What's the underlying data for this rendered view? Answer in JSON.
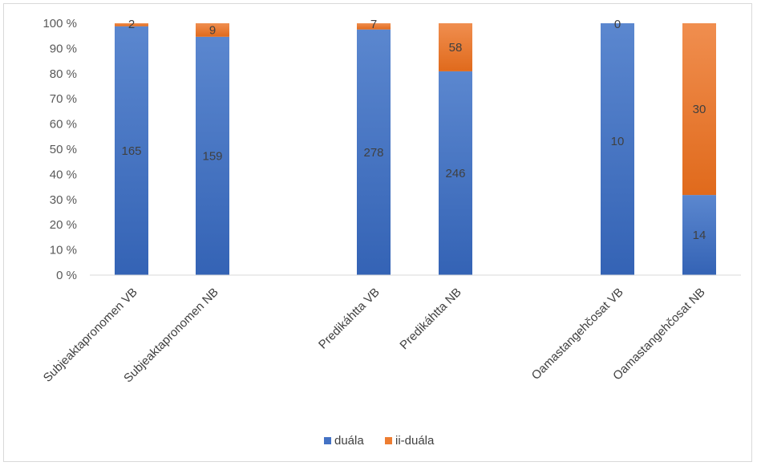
{
  "chart_data": {
    "type": "bar",
    "stacked": "percent",
    "categories": [
      "Subjeaktapronomen VB",
      "Subjeaktapronomen NB",
      "Predikáhtta VB",
      "Predikáhtta NB",
      "Oamastangehčosat VB",
      "Oamastangehčosat NB"
    ],
    "groups": [
      [
        0,
        1
      ],
      [
        2,
        3
      ],
      [
        4,
        5
      ]
    ],
    "series": [
      {
        "name": "duála",
        "color": "#4472c4",
        "values": [
          165,
          159,
          278,
          246,
          10,
          14
        ]
      },
      {
        "name": "ii-duála",
        "color": "#ed7d31",
        "values": [
          2,
          9,
          7,
          58,
          0,
          30
        ]
      }
    ],
    "y_ticks": [
      "0 %",
      "10 %",
      "20 %",
      "30 %",
      "40 %",
      "50 %",
      "60 %",
      "70 %",
      "80 %",
      "90 %",
      "100 %"
    ],
    "ylim": [
      0,
      100
    ],
    "grid": false,
    "legend": "bottom"
  }
}
